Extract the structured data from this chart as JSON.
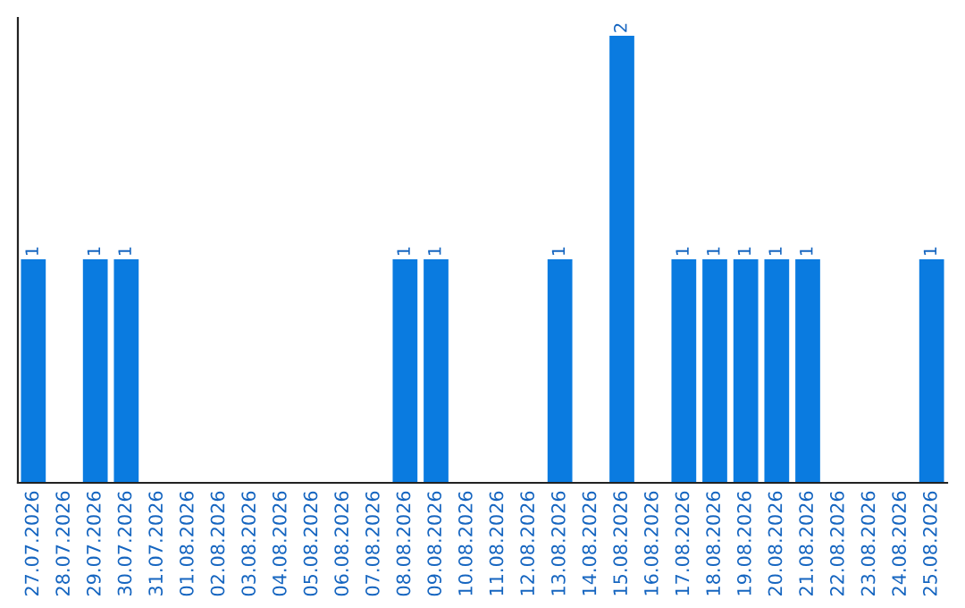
{
  "chart_data": {
    "type": "bar",
    "categories": [
      "27.07.2026",
      "28.07.2026",
      "29.07.2026",
      "30.07.2026",
      "31.07.2026",
      "01.08.2026",
      "02.08.2026",
      "03.08.2026",
      "04.08.2026",
      "05.08.2026",
      "06.08.2026",
      "07.08.2026",
      "08.08.2026",
      "09.08.2026",
      "10.08.2026",
      "11.08.2026",
      "12.08.2026",
      "13.08.2026",
      "14.08.2026",
      "15.08.2026",
      "16.08.2026",
      "17.08.2026",
      "18.08.2026",
      "19.08.2026",
      "20.08.2026",
      "21.08.2026",
      "22.08.2026",
      "23.08.2026",
      "24.08.2026",
      "25.08.2026"
    ],
    "values": [
      1,
      0,
      1,
      1,
      0,
      0,
      0,
      0,
      0,
      0,
      0,
      0,
      1,
      1,
      0,
      0,
      0,
      1,
      0,
      2,
      0,
      1,
      1,
      1,
      1,
      1,
      0,
      0,
      0,
      1
    ],
    "value_labels": [
      "1",
      null,
      "1",
      "1",
      null,
      null,
      null,
      null,
      null,
      null,
      null,
      null,
      "1",
      "1",
      null,
      null,
      null,
      "1",
      null,
      "2",
      null,
      "1",
      "1",
      "1",
      "1",
      "1",
      null,
      null,
      null,
      "1"
    ],
    "color": "#0a7be0",
    "tick_labels": "x",
    "grid": false,
    "legend": false
  }
}
